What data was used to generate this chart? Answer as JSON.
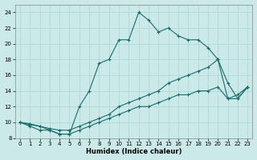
{
  "xlabel": "Humidex (Indice chaleur)",
  "xlim": [
    -0.5,
    23.5
  ],
  "ylim": [
    8,
    25
  ],
  "yticks": [
    8,
    10,
    12,
    14,
    16,
    18,
    20,
    22,
    24
  ],
  "xticks": [
    0,
    1,
    2,
    3,
    4,
    5,
    6,
    7,
    8,
    9,
    10,
    11,
    12,
    13,
    14,
    15,
    16,
    17,
    18,
    19,
    20,
    21,
    22,
    23
  ],
  "bg_color": "#cce9e9",
  "line_color": "#1a6b6b",
  "grid_color": "#b0d8d8",
  "lines": [
    {
      "x": [
        0,
        1,
        2,
        3,
        4,
        5,
        6,
        7,
        8,
        9,
        10,
        11,
        12,
        13,
        14,
        15,
        16,
        17,
        18,
        19,
        20,
        21,
        22,
        23
      ],
      "y": [
        10,
        9.5,
        9,
        9,
        8.5,
        8.5,
        12,
        14,
        17.5,
        18,
        20.5,
        20.5,
        24,
        23,
        21.5,
        22,
        21,
        20.5,
        20.5,
        19.5,
        18,
        15,
        13,
        14.5
      ]
    },
    {
      "x": [
        0,
        1,
        2,
        3,
        4,
        5,
        6,
        7,
        8,
        9,
        10,
        11,
        12,
        13,
        14,
        15,
        16,
        17,
        18,
        19,
        20,
        21,
        22,
        23
      ],
      "y": [
        10,
        9.8,
        9.5,
        9.2,
        9,
        9,
        9.5,
        10,
        10.5,
        11,
        12,
        12.5,
        13,
        13.5,
        14,
        15,
        15.5,
        16,
        16.5,
        17,
        18,
        13,
        13.5,
        14.5
      ]
    },
    {
      "x": [
        0,
        1,
        2,
        3,
        4,
        5,
        6,
        7,
        8,
        9,
        10,
        11,
        12,
        13,
        14,
        15,
        16,
        17,
        18,
        19,
        20,
        21,
        22,
        23
      ],
      "y": [
        10,
        9.7,
        9.5,
        9,
        8.5,
        8.5,
        9,
        9.5,
        10,
        10.5,
        11,
        11.5,
        12,
        12,
        12.5,
        13,
        13.5,
        13.5,
        14,
        14,
        14.5,
        13,
        13,
        14.5
      ]
    }
  ]
}
